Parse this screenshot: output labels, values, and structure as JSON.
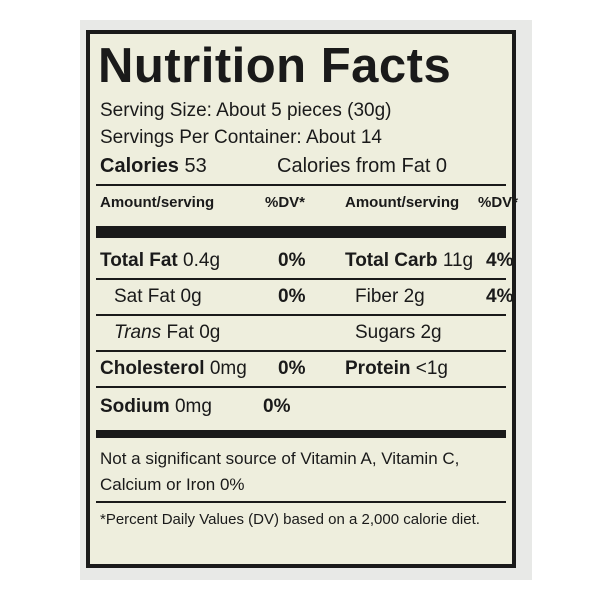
{
  "label": {
    "title": "Nutrition Facts",
    "serving_size": "Serving Size: About 5 pieces (30g)",
    "servings_per_container": "Servings Per Container: About 14",
    "calories_label": "Calories",
    "calories_value": "53",
    "calories_from_fat": "Calories from Fat 0",
    "header": {
      "left_amount": "Amount/serving",
      "left_dv": "%DV*",
      "right_amount": "Amount/serving",
      "right_dv": "%DV*"
    },
    "left": [
      {
        "name": "Total Fat",
        "amount": "0.4g",
        "dv": "0%"
      },
      {
        "name": "Sat Fat",
        "amount": "0g",
        "dv": "0%"
      },
      {
        "name_italic": "Trans",
        "name": "Fat",
        "amount": "0g",
        "dv": ""
      },
      {
        "name": "Cholesterol",
        "amount": "0mg",
        "dv": "0%"
      },
      {
        "name": "Sodium",
        "amount": "0mg",
        "dv": "0%"
      }
    ],
    "right": [
      {
        "name": "Total Carb",
        "amount": "11g",
        "dv": "4%"
      },
      {
        "name": "Fiber",
        "amount": "2g",
        "dv": "4%"
      },
      {
        "name": "Sugars",
        "amount": "2g",
        "dv": ""
      },
      {
        "name": "Protein",
        "amount": "<1g",
        "dv": ""
      }
    ],
    "footnote_line1": "Not a significant source of Vitamin A, Vitamin C,",
    "footnote_line2": "Calcium or Iron 0%",
    "footnote_dv": "*Percent Daily Values (DV) based on a 2,000 calorie diet."
  }
}
